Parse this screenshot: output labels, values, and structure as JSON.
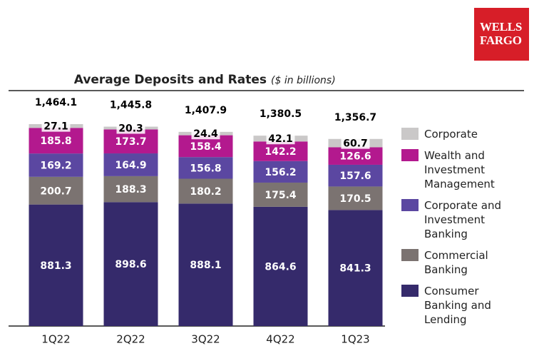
{
  "logo": "WELLS FARGO",
  "chart_data": {
    "type": "stacked-bar",
    "title": "Average Deposits and Rates",
    "subtitle": "($ in billions)",
    "categories": [
      "1Q22",
      "2Q22",
      "3Q22",
      "4Q22",
      "1Q23"
    ],
    "series": [
      {
        "name": "Consumer Banking and Lending",
        "color": "#352a6b",
        "values": [
          881.3,
          898.6,
          888.1,
          864.6,
          841.3
        ]
      },
      {
        "name": "Commercial Banking",
        "color": "#7b7371",
        "values": [
          200.7,
          188.3,
          180.2,
          175.4,
          170.5
        ]
      },
      {
        "name": "Corporate and Investment Banking",
        "color": "#5b47a1",
        "values": [
          169.2,
          164.9,
          156.8,
          156.2,
          157.6
        ]
      },
      {
        "name": "Wealth and Investment Management",
        "color": "#b3198e",
        "values": [
          185.8,
          173.7,
          158.4,
          142.2,
          126.6
        ]
      },
      {
        "name": "Corporate",
        "color": "#cac8c8",
        "values": [
          27.1,
          20.3,
          24.4,
          42.1,
          60.7
        ]
      }
    ],
    "totals": {
      "values": [
        1464.1,
        1445.8,
        1407.9,
        1380.5,
        1356.7
      ],
      "value_labels": [
        "1,464.1",
        "1,445.8",
        "1,407.9",
        "1,380.5",
        "1,356.7"
      ]
    }
  }
}
